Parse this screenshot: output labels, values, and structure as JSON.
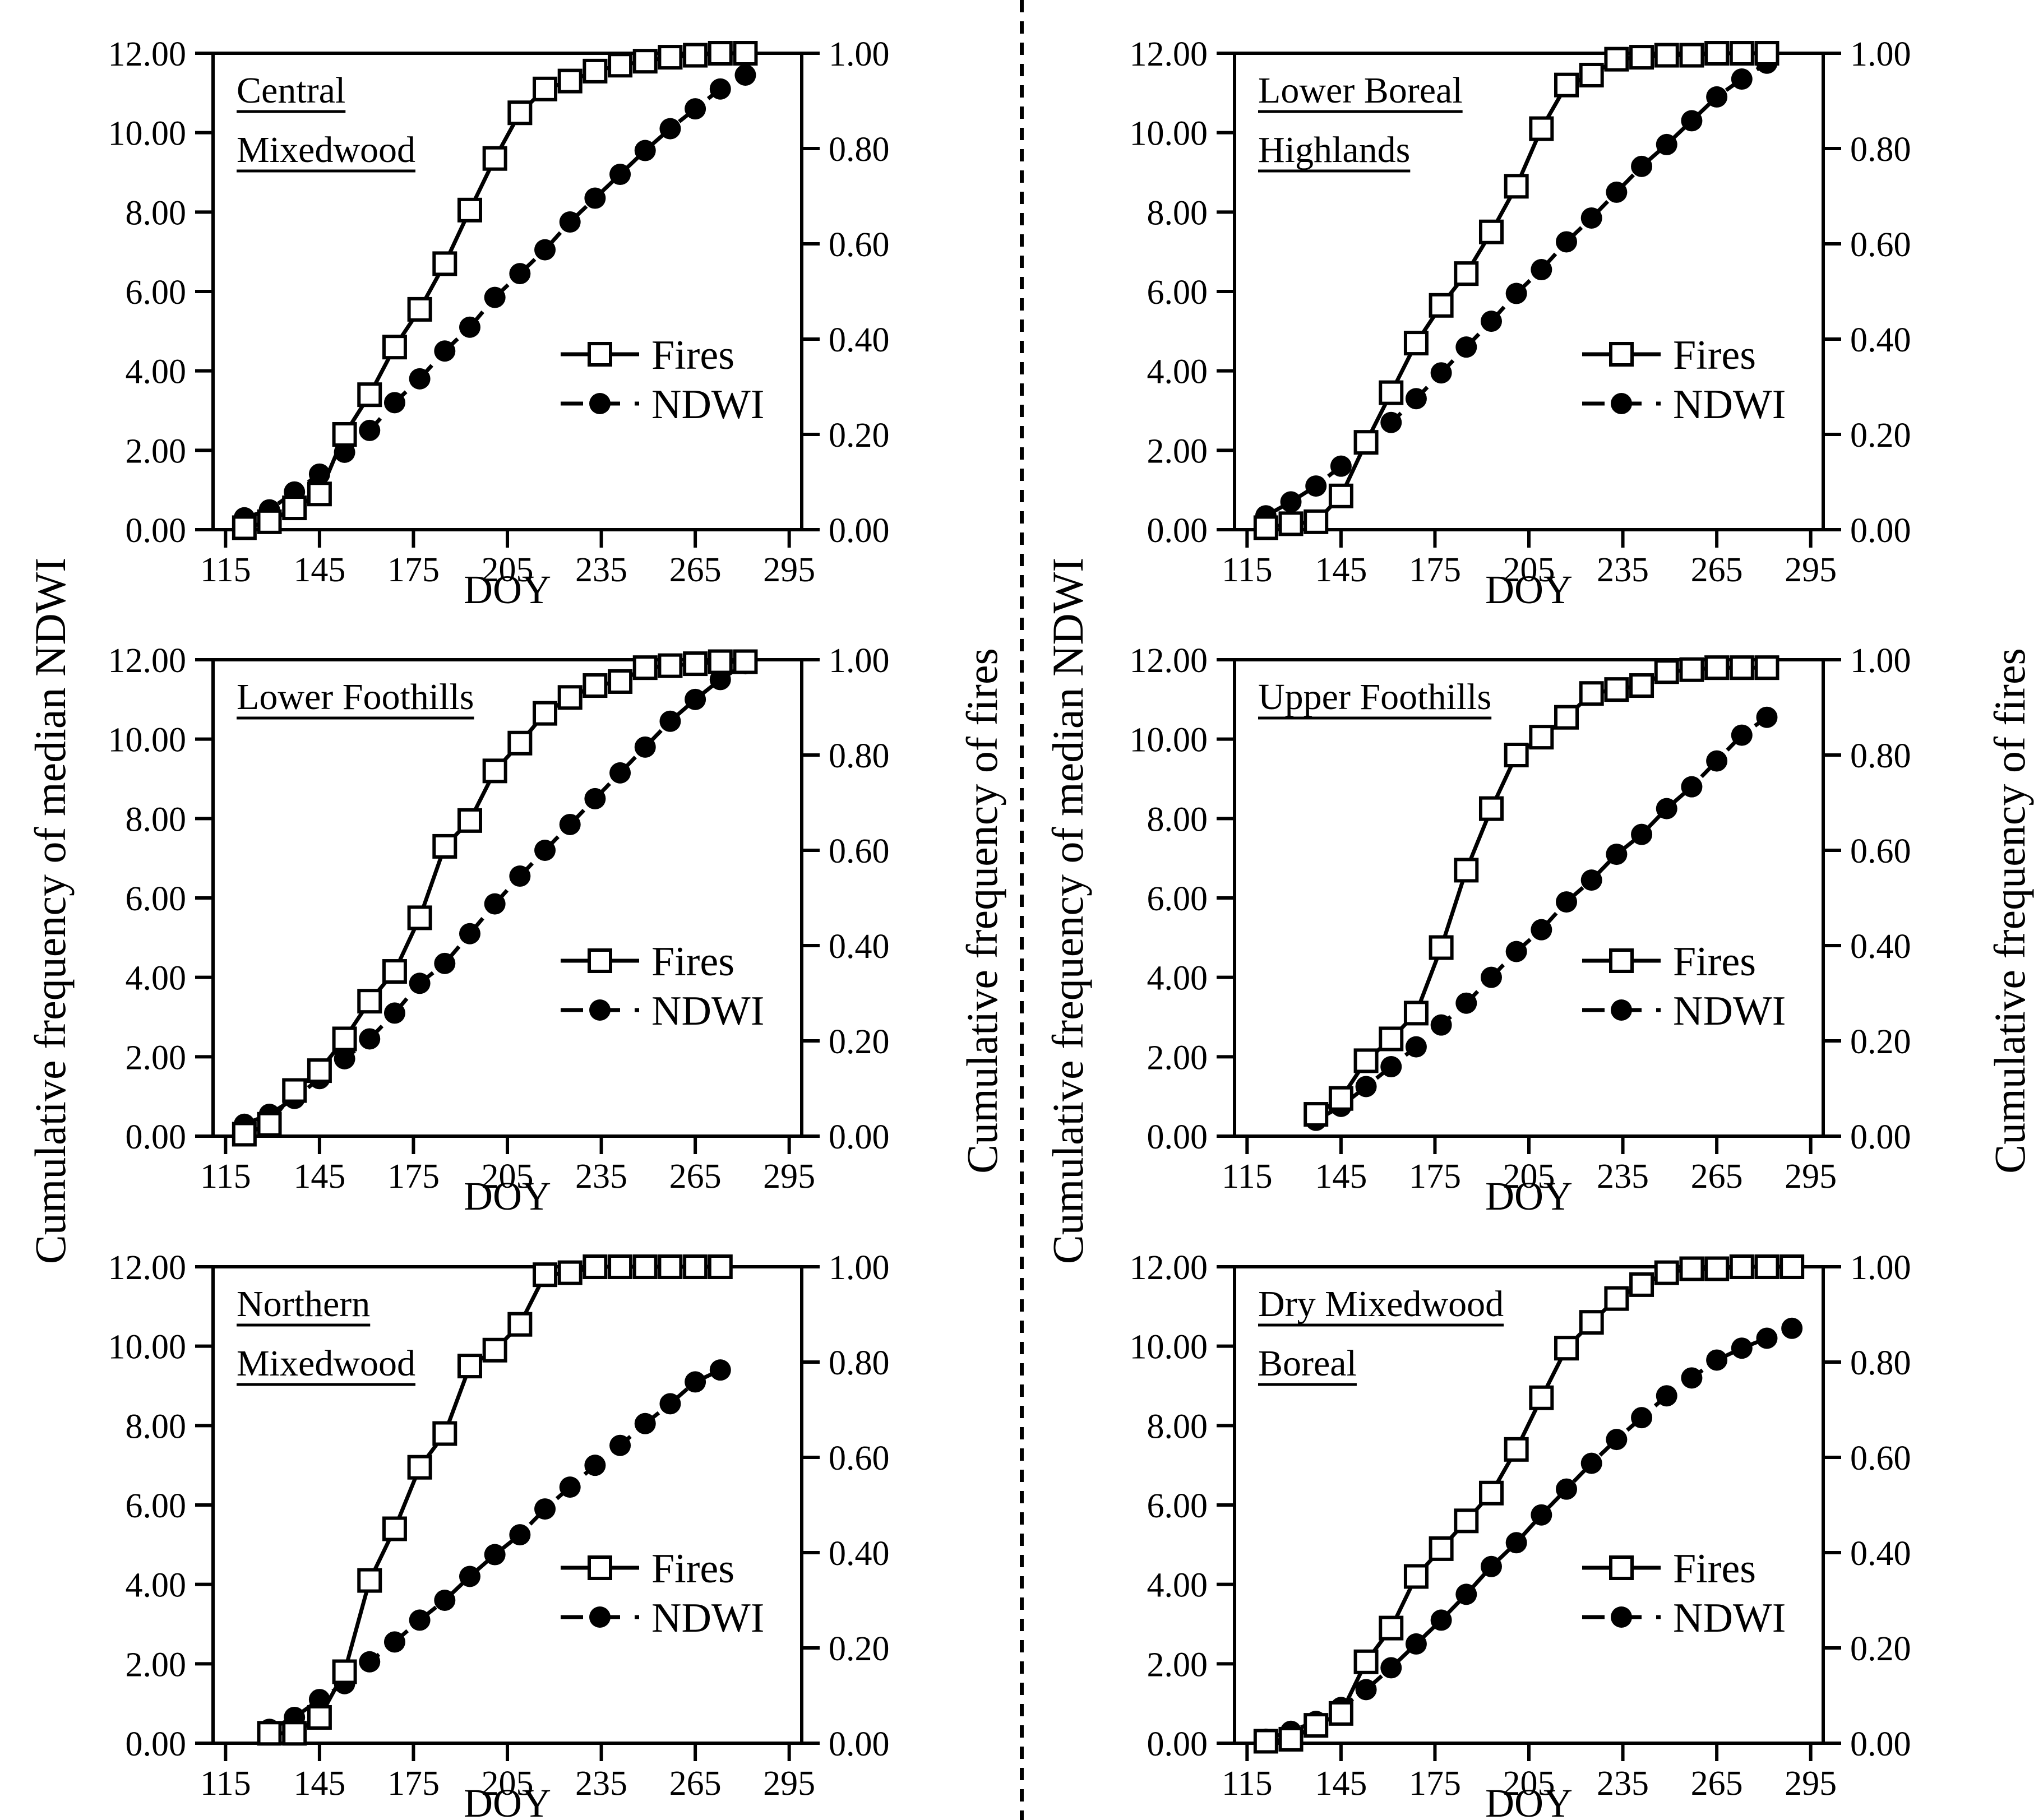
{
  "figure": {
    "left_axis_label": "Cumulative frequency of median NDWI",
    "right_axis_label": "Cumulative frequency of fires",
    "x_axis_label": "DOY",
    "legend": {
      "fires": "Fires",
      "ndwi": "NDWI"
    },
    "colors": {
      "foreground": "#000000",
      "background": "#ffffff"
    }
  },
  "axes": {
    "x_ticks": [
      115,
      145,
      175,
      205,
      235,
      265,
      295
    ],
    "x_range": [
      111,
      299
    ],
    "y_left_values": [
      0,
      2,
      4,
      6,
      8,
      10,
      12
    ],
    "y_left_labels": [
      "0.00",
      "2.00",
      "4.00",
      "6.00",
      "8.00",
      "10.00",
      "12.00"
    ],
    "y_left_range": [
      0,
      12
    ],
    "y_right_values": [
      0,
      0.2,
      0.4,
      0.6,
      0.8,
      1.0
    ],
    "y_right_labels": [
      "0.00",
      "0.20",
      "0.40",
      "0.60",
      "0.80",
      "1.00"
    ],
    "y_right_range": [
      0,
      1
    ],
    "grid": false
  },
  "chart_data": [
    {
      "type": "line",
      "id": "central-mixedwood",
      "title": "Central Mixedwood",
      "title_lines": [
        "Central",
        "Mixedwood"
      ],
      "xlabel": "DOY",
      "x": [
        121,
        129,
        137,
        145,
        153,
        161,
        169,
        177,
        185,
        193,
        201,
        209,
        217,
        225,
        233,
        241,
        249,
        257,
        265,
        273,
        281
      ],
      "series": [
        {
          "name": "Fires",
          "marker": "open-square",
          "line": "solid",
          "axis_units": "left 0-12 (right = value/12)",
          "values": [
            0.05,
            0.2,
            0.55,
            0.9,
            2.4,
            3.4,
            4.6,
            5.55,
            6.7,
            8.05,
            9.35,
            10.5,
            11.1,
            11.3,
            11.55,
            11.7,
            11.8,
            11.9,
            11.95,
            12.0,
            12.0
          ]
        },
        {
          "name": "NDWI",
          "marker": "filled-circle",
          "line": "dashed",
          "axis_units": "left 0-12",
          "values": [
            0.3,
            0.5,
            0.95,
            1.4,
            1.95,
            2.5,
            3.2,
            3.8,
            4.5,
            5.1,
            5.85,
            6.45,
            7.05,
            7.75,
            8.35,
            8.95,
            9.55,
            10.1,
            10.6,
            11.1,
            11.45
          ]
        }
      ]
    },
    {
      "type": "line",
      "id": "lower-boreal-highlands",
      "title": "Lower Boreal Highlands",
      "title_lines": [
        "Lower Boreal",
        "Highlands"
      ],
      "xlabel": "DOY",
      "x": [
        121,
        129,
        137,
        145,
        153,
        161,
        169,
        177,
        185,
        193,
        201,
        209,
        217,
        225,
        233,
        241,
        249,
        257,
        265,
        273,
        281
      ],
      "series": [
        {
          "name": "Fires",
          "marker": "open-square",
          "line": "solid",
          "axis_units": "left 0-12 (right = value/12)",
          "values": [
            0.05,
            0.15,
            0.2,
            0.85,
            2.2,
            3.45,
            4.7,
            5.65,
            6.45,
            7.5,
            8.65,
            10.1,
            11.2,
            11.45,
            11.85,
            11.9,
            11.95,
            11.95,
            12.0,
            12.0,
            12.0
          ]
        },
        {
          "name": "NDWI",
          "marker": "filled-circle",
          "line": "dashed",
          "axis_units": "left 0-12",
          "values": [
            0.35,
            0.7,
            1.1,
            1.6,
            2.2,
            2.7,
            3.3,
            3.95,
            4.6,
            5.25,
            5.95,
            6.55,
            7.25,
            7.85,
            8.5,
            9.15,
            9.7,
            10.3,
            10.9,
            11.35,
            11.75
          ]
        }
      ]
    },
    {
      "type": "line",
      "id": "lower-foothills",
      "title": "Lower Foothills",
      "title_lines": [
        "Lower Foothills"
      ],
      "xlabel": "DOY",
      "x": [
        121,
        129,
        137,
        145,
        153,
        161,
        169,
        177,
        185,
        193,
        201,
        209,
        217,
        225,
        233,
        241,
        249,
        257,
        265,
        273,
        281
      ],
      "series": [
        {
          "name": "Fires",
          "marker": "open-square",
          "line": "solid",
          "axis_units": "left 0-12 (right = value/12)",
          "values": [
            0.05,
            0.3,
            1.15,
            1.65,
            2.45,
            3.4,
            4.15,
            5.5,
            7.3,
            7.95,
            9.2,
            9.9,
            10.65,
            11.05,
            11.35,
            11.45,
            11.8,
            11.85,
            11.9,
            11.95,
            11.95
          ]
        },
        {
          "name": "NDWI",
          "marker": "filled-circle",
          "line": "dashed",
          "axis_units": "left 0-12",
          "values": [
            0.3,
            0.55,
            0.95,
            1.45,
            1.95,
            2.45,
            3.1,
            3.85,
            4.35,
            5.1,
            5.85,
            6.55,
            7.2,
            7.85,
            8.5,
            9.15,
            9.8,
            10.45,
            11.0,
            11.5,
            11.9
          ]
        }
      ]
    },
    {
      "type": "line",
      "id": "upper-foothills",
      "title": "Upper Foothills",
      "title_lines": [
        "Upper Foothills"
      ],
      "xlabel": "DOY",
      "x": [
        137,
        145,
        153,
        161,
        169,
        177,
        185,
        193,
        201,
        209,
        217,
        225,
        233,
        241,
        249,
        257,
        265,
        273,
        281
      ],
      "series": [
        {
          "name": "Fires",
          "marker": "open-square",
          "line": "solid",
          "axis_units": "left 0-12 (right = value/12)",
          "values": [
            0.55,
            0.95,
            1.9,
            2.45,
            3.1,
            4.75,
            6.7,
            8.25,
            9.6,
            10.05,
            10.55,
            11.15,
            11.25,
            11.35,
            11.7,
            11.75,
            11.8,
            11.8,
            11.8
          ]
        },
        {
          "name": "NDWI",
          "marker": "filled-circle",
          "line": "dashed",
          "axis_units": "left 0-12",
          "values": [
            0.4,
            0.75,
            1.25,
            1.75,
            2.25,
            2.8,
            3.35,
            4.0,
            4.65,
            5.2,
            5.9,
            6.45,
            7.1,
            7.6,
            8.25,
            8.8,
            9.45,
            10.1,
            10.55
          ]
        }
      ]
    },
    {
      "type": "line",
      "id": "northern-mixedwood",
      "title": "Northern Mixedwood",
      "title_lines": [
        "Northern",
        "Mixedwood"
      ],
      "xlabel": "DOY",
      "x": [
        129,
        137,
        145,
        153,
        161,
        169,
        177,
        185,
        193,
        201,
        209,
        217,
        225,
        233,
        241,
        249,
        257,
        265,
        273
      ],
      "series": [
        {
          "name": "Fires",
          "marker": "open-square",
          "line": "solid",
          "axis_units": "left 0-12 (right = value/12)",
          "values": [
            0.25,
            0.25,
            0.65,
            1.8,
            4.1,
            5.4,
            6.95,
            7.8,
            9.5,
            9.9,
            10.55,
            11.8,
            11.85,
            12.0,
            12.0,
            12.0,
            12.0,
            12.0,
            12.0
          ]
        },
        {
          "name": "NDWI",
          "marker": "filled-circle",
          "line": "dashed",
          "axis_units": "left 0-12",
          "values": [
            0.35,
            0.65,
            1.1,
            1.5,
            2.05,
            2.55,
            3.1,
            3.6,
            4.2,
            4.75,
            5.25,
            5.9,
            6.45,
            7.0,
            7.5,
            8.05,
            8.55,
            9.1,
            9.4
          ]
        }
      ]
    },
    {
      "type": "line",
      "id": "dry-mixedwood-boreal",
      "title": "Dry Mixedwood Boreal",
      "title_lines": [
        "Dry Mixedwood",
        "Boreal"
      ],
      "xlabel": "DOY",
      "x": [
        121,
        129,
        137,
        145,
        153,
        161,
        169,
        177,
        185,
        193,
        201,
        209,
        217,
        225,
        233,
        241,
        249,
        257,
        265,
        273,
        281,
        289
      ],
      "series": [
        {
          "name": "Fires",
          "marker": "open-square",
          "line": "solid",
          "axis_units": "left 0-12 (right = value/12)",
          "values": [
            0.05,
            0.1,
            0.45,
            0.75,
            2.05,
            2.9,
            4.2,
            4.9,
            5.6,
            6.3,
            7.4,
            8.7,
            9.95,
            10.6,
            11.2,
            11.55,
            11.85,
            11.95,
            11.95,
            12.0,
            12.0,
            12.0
          ]
        },
        {
          "name": "NDWI",
          "marker": "filled-circle",
          "line": "dashed",
          "axis_units": "left 0-12",
          "values": [
            0.1,
            0.3,
            0.55,
            0.9,
            1.35,
            1.9,
            2.5,
            3.1,
            3.75,
            4.45,
            5.05,
            5.75,
            6.4,
            7.05,
            7.65,
            8.2,
            8.75,
            9.2,
            9.65,
            9.95,
            10.2,
            10.45
          ]
        }
      ]
    }
  ]
}
